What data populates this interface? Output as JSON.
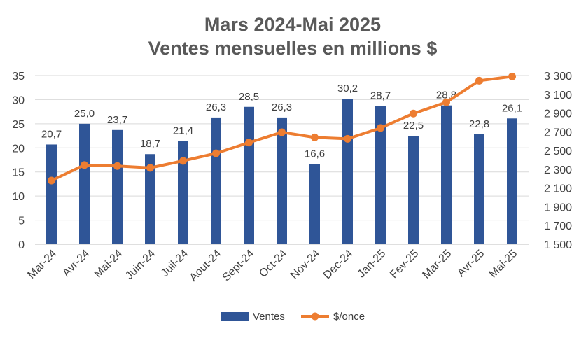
{
  "chart_data": {
    "type": "bar",
    "title": [
      "Mars 2024-Mai 2025",
      "Ventes mensuelles en millions $"
    ],
    "categories": [
      "Mar-24",
      "Avr-24",
      "Mai-24",
      "Juin-24",
      "Juil-24",
      "Aout-24",
      "Sept-24",
      "Oct-24",
      "Nov-24",
      "Dec-24",
      "Jan-25",
      "Fev-25",
      "Mar-25",
      "Avr-25",
      "Mai-25"
    ],
    "series": [
      {
        "name": "Ventes",
        "kind": "bar",
        "axis": "left",
        "color": "#2f5597",
        "values": [
          20.7,
          25.0,
          23.7,
          18.7,
          21.4,
          26.3,
          28.5,
          26.3,
          16.6,
          30.2,
          28.7,
          22.5,
          28.8,
          22.8,
          26.1
        ],
        "labels": [
          "20,7",
          "25,0",
          "23,7",
          "18,7",
          "21,4",
          "26,3",
          "28,5",
          "26,3",
          "16,6",
          "30,2",
          "28,7",
          "22,5",
          "28,8",
          "22,8",
          "26,1"
        ]
      },
      {
        "name": "$/once",
        "kind": "line",
        "axis": "right",
        "color": "#ed7d31",
        "values": [
          2180,
          2345,
          2335,
          2315,
          2390,
          2470,
          2585,
          2695,
          2640,
          2625,
          2740,
          2895,
          3015,
          3245,
          3290
        ]
      }
    ],
    "y_left": {
      "min": 0,
      "max": 35,
      "ticks": [
        0,
        5,
        10,
        15,
        20,
        25,
        30,
        35
      ],
      "tick_labels": [
        "0",
        "5",
        "10",
        "15",
        "20",
        "25",
        "30",
        "35"
      ]
    },
    "y_right": {
      "min": 1500,
      "max": 3300,
      "ticks": [
        1500,
        1700,
        1900,
        2100,
        2300,
        2500,
        2700,
        2900,
        3100,
        3300
      ],
      "tick_labels": [
        "1 500",
        "1 700",
        "1 900",
        "2 100",
        "2 300",
        "2 500",
        "2 700",
        "2 900",
        "3 100",
        "3 300"
      ]
    },
    "grid": true,
    "legend": "bottom"
  }
}
